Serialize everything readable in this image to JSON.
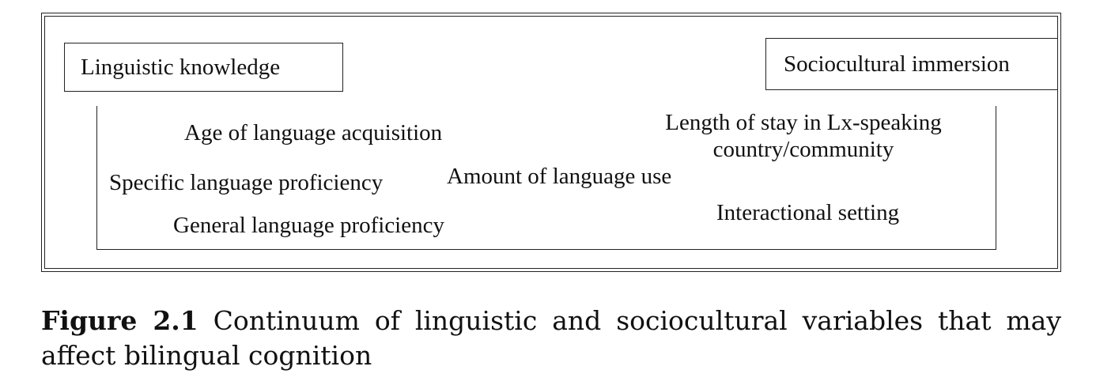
{
  "poles": {
    "left": "Linguistic knowledge",
    "right": "Sociocultural immersion"
  },
  "variables": {
    "age_of_acquisition": "Age of language acquisition",
    "specific_proficiency": "Specific language proficiency",
    "general_proficiency": "General language proficiency",
    "amount_of_use": "Amount of language use",
    "length_of_stay_line1": "Length of stay in Lx-speaking",
    "length_of_stay_line2": "country/community",
    "interactional_setting": "Interactional setting"
  },
  "caption": {
    "label": "Figure 2.1",
    "text": "Continuum of linguistic and sociocultural variables that may affect bilingual cognition"
  }
}
